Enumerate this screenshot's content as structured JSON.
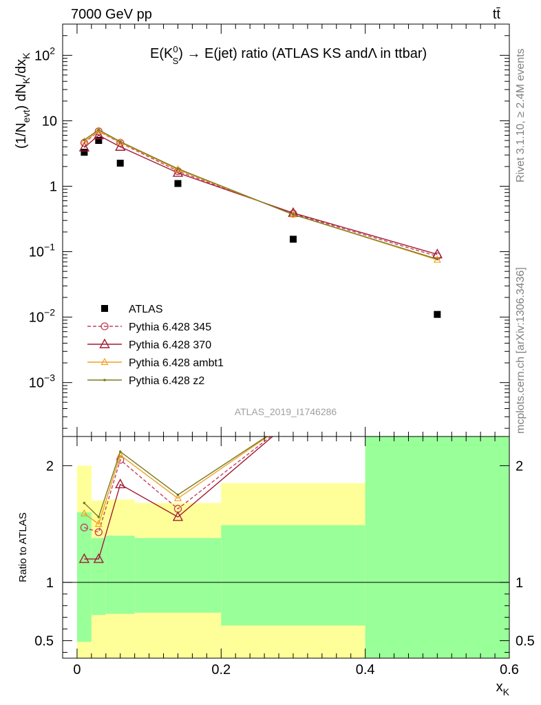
{
  "header": {
    "left_title": "7000 GeV pp",
    "right_title": "tt̄",
    "side_top": "Rivet 3.1.10, ≥ 2.4M events",
    "side_bottom": "mcplots.cern.ch [arXiv:1306.3436]",
    "analysis_id": "ATLAS_2019_I1746286"
  },
  "chart_data": [
    {
      "type": "scatter",
      "panel": "main",
      "title": "E(K_S^0) → E(jet) ratio (ATLAS KS and Λ in ttbar)",
      "title_parts": {
        "pre": "E(K",
        "sup": "0",
        "sub": "S",
        "post": ") → E(jet) ratio (ATLAS KS andΛ in ttbar)"
      },
      "ylabel": "(1/N_evt) dN_K/dx_K",
      "ylabel_parts": {
        "a": "(1/N",
        "a_sub": "evt",
        "b": ") dN",
        "b_sub": "K",
        "c": "/dx",
        "c_sub": "K"
      },
      "xlabel": "x_K",
      "yscale": "log",
      "xlim": [
        -0.02,
        0.6
      ],
      "ylim": [
        0.00015,
        300
      ],
      "y_ticks": [
        {
          "value": 0.001,
          "base": "10",
          "exp": "−3"
        },
        {
          "value": 0.01,
          "base": "10",
          "exp": "−2"
        },
        {
          "value": 0.1,
          "base": "10",
          "exp": "−1"
        },
        {
          "value": 1,
          "base": "1",
          "exp": ""
        },
        {
          "value": 10,
          "base": "10",
          "exp": ""
        },
        {
          "value": 100,
          "base": "10",
          "exp": "2"
        }
      ],
      "legend_position": "lower-left",
      "series": [
        {
          "name": "ATLAS",
          "style": "data",
          "color": "#000000",
          "x": [
            0.01,
            0.03,
            0.06,
            0.14,
            0.3,
            0.5
          ],
          "y": [
            3.3,
            5.0,
            2.25,
            1.1,
            0.155,
            0.011
          ]
        },
        {
          "name": "Pythia 6.428 345",
          "style": "circle-dashed",
          "color": "#c0405a",
          "x": [
            0.01,
            0.03,
            0.06,
            0.14,
            0.3,
            0.5
          ],
          "y": [
            4.6,
            6.9,
            4.6,
            1.7,
            0.38,
            0.085
          ]
        },
        {
          "name": "Pythia 6.428 370",
          "style": "triangle",
          "color": "#a01a35",
          "x": [
            0.01,
            0.03,
            0.06,
            0.14,
            0.3,
            0.5
          ],
          "y": [
            3.9,
            6.0,
            4.0,
            1.6,
            0.39,
            0.091
          ]
        },
        {
          "name": "Pythia 6.428 ambt1",
          "style": "triangle-small",
          "color": "#f0a020",
          "x": [
            0.01,
            0.03,
            0.06,
            0.14,
            0.3,
            0.5
          ],
          "y": [
            4.8,
            7.0,
            4.7,
            1.8,
            0.37,
            0.075
          ]
        },
        {
          "name": "Pythia 6.428 z2",
          "style": "dot",
          "color": "#7a7a20",
          "x": [
            0.01,
            0.03,
            0.06,
            0.14,
            0.3,
            0.5
          ],
          "y": [
            5.1,
            7.3,
            4.8,
            1.85,
            0.37,
            0.077
          ]
        }
      ]
    },
    {
      "type": "line",
      "panel": "ratio",
      "ylabel": "Ratio to ATLAS",
      "xlabel": "x_K",
      "xlim": [
        -0.02,
        0.6
      ],
      "ylim": [
        0.35,
        2.25
      ],
      "y_ticks": [
        0.5,
        1,
        2
      ],
      "y_tick_labels": [
        "0.5",
        "1",
        "2"
      ],
      "x_ticks": [
        0,
        0.2,
        0.4,
        0.6
      ],
      "x_tick_labels": [
        "0",
        "0.2",
        "0.4",
        "0.6"
      ],
      "bands": {
        "yellow_color": "#ffff99",
        "green_color": "#99ff99",
        "bins": [
          {
            "x0": 0.0,
            "x1": 0.02,
            "yellow_lo": 0.35,
            "yellow_hi": 2.0,
            "green_lo": 0.49,
            "green_hi": 1.6
          },
          {
            "x0": 0.02,
            "x1": 0.04,
            "yellow_lo": 0.35,
            "yellow_hi": 1.7,
            "green_lo": 0.72,
            "green_hi": 1.38
          },
          {
            "x0": 0.04,
            "x1": 0.08,
            "yellow_lo": 0.35,
            "yellow_hi": 1.71,
            "green_lo": 0.73,
            "green_hi": 1.4
          },
          {
            "x0": 0.08,
            "x1": 0.2,
            "yellow_lo": 0.35,
            "yellow_hi": 1.68,
            "green_lo": 0.74,
            "green_hi": 1.38
          },
          {
            "x0": 0.2,
            "x1": 0.4,
            "yellow_lo": 0.35,
            "yellow_hi": 1.85,
            "green_lo": 0.63,
            "green_hi": 1.49
          },
          {
            "x0": 0.4,
            "x1": 0.6,
            "yellow_lo": 0.35,
            "yellow_hi": 2.25,
            "green_lo": 0.35,
            "green_hi": 2.25
          }
        ]
      },
      "series": [
        {
          "name": "Pythia 6.428 345",
          "style": "circle-dashed",
          "color": "#c0405a",
          "x": [
            0.01,
            0.03,
            0.06,
            0.14,
            0.3
          ],
          "y": [
            1.47,
            1.43,
            2.05,
            1.63,
            2.4
          ]
        },
        {
          "name": "Pythia 6.428 370",
          "style": "triangle",
          "color": "#a01a35",
          "x": [
            0.01,
            0.03,
            0.06,
            0.14,
            0.3
          ],
          "y": [
            1.2,
            1.2,
            1.84,
            1.56,
            2.4
          ]
        },
        {
          "name": "Pythia 6.428 ambt1",
          "style": "triangle-small",
          "color": "#f0a020",
          "x": [
            0.01,
            0.03,
            0.06,
            0.14,
            0.3
          ],
          "y": [
            1.59,
            1.5,
            2.09,
            1.72,
            2.4
          ]
        },
        {
          "name": "Pythia 6.428 z2",
          "style": "dot",
          "color": "#7a7a20",
          "x": [
            0.01,
            0.03,
            0.06,
            0.14,
            0.3
          ],
          "y": [
            1.68,
            1.56,
            2.12,
            1.75,
            2.4
          ]
        }
      ]
    }
  ]
}
